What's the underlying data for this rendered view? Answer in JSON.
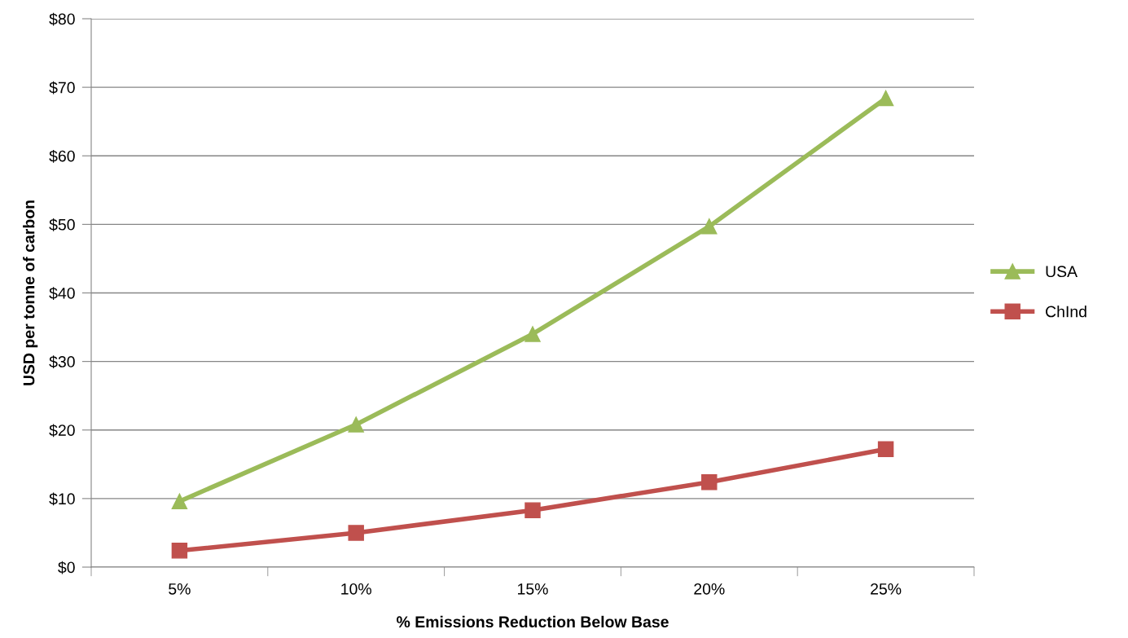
{
  "chart_data": {
    "type": "line",
    "xlabel": "% Emissions Reduction Below Base",
    "ylabel": "USD per tonne of carbon",
    "categories": [
      "5%",
      "10%",
      "15%",
      "20%",
      "25%"
    ],
    "series": [
      {
        "name": "USA",
        "color": "#9bbb59",
        "marker": "triangle",
        "values": [
          9.6,
          20.8,
          34.0,
          49.7,
          68.4
        ]
      },
      {
        "name": "ChInd",
        "color": "#c0504d",
        "marker": "square",
        "values": [
          2.4,
          5.0,
          8.3,
          12.4,
          17.2
        ]
      }
    ],
    "ylim": [
      0,
      80
    ],
    "yticks": [
      {
        "value": 0,
        "label": "$0"
      },
      {
        "value": 10,
        "label": "$10"
      },
      {
        "value": 20,
        "label": "$20"
      },
      {
        "value": 30,
        "label": "$30"
      },
      {
        "value": 40,
        "label": "$40"
      },
      {
        "value": 50,
        "label": "$50"
      },
      {
        "value": 60,
        "label": "$60"
      },
      {
        "value": 70,
        "label": "$70"
      },
      {
        "value": 80,
        "label": "$80"
      }
    ],
    "grid": "y",
    "legend": "right",
    "line_style": "solid"
  }
}
